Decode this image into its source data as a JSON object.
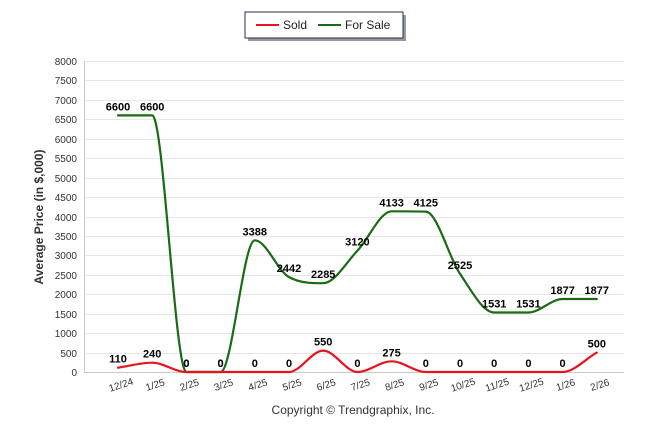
{
  "chart_data": {
    "type": "line",
    "title": "",
    "xlabel": "",
    "ylabel": "Average Price (in $,000)",
    "ylim": [
      0,
      8000
    ],
    "yticks": [
      0,
      500,
      1000,
      1500,
      2000,
      2500,
      3000,
      3500,
      4000,
      4500,
      5000,
      5500,
      6000,
      6500,
      7000,
      7500,
      8000
    ],
    "categories": [
      "12/24",
      "1/25",
      "2/25",
      "3/25",
      "4/25",
      "5/25",
      "6/25",
      "7/25",
      "8/25",
      "9/25",
      "10/25",
      "11/25",
      "12/25",
      "1/26",
      "2/26"
    ],
    "series": [
      {
        "name": "Sold",
        "color": "#e8141e",
        "values": [
          110,
          240,
          0,
          0,
          0,
          0,
          550,
          0,
          275,
          0,
          0,
          0,
          0,
          0,
          500
        ]
      },
      {
        "name": "For Sale",
        "color": "#1a6b12",
        "values": [
          6600,
          6600,
          0,
          0,
          3388,
          2442,
          2285,
          3120,
          4133,
          4125,
          2525,
          1531,
          1531,
          1877,
          1877
        ]
      }
    ],
    "legend": [
      "Sold",
      "For Sale"
    ],
    "legend_position": "top-center",
    "grid": true
  },
  "footer": {
    "copyright": "Copyright © Trendgraphix, Inc."
  }
}
